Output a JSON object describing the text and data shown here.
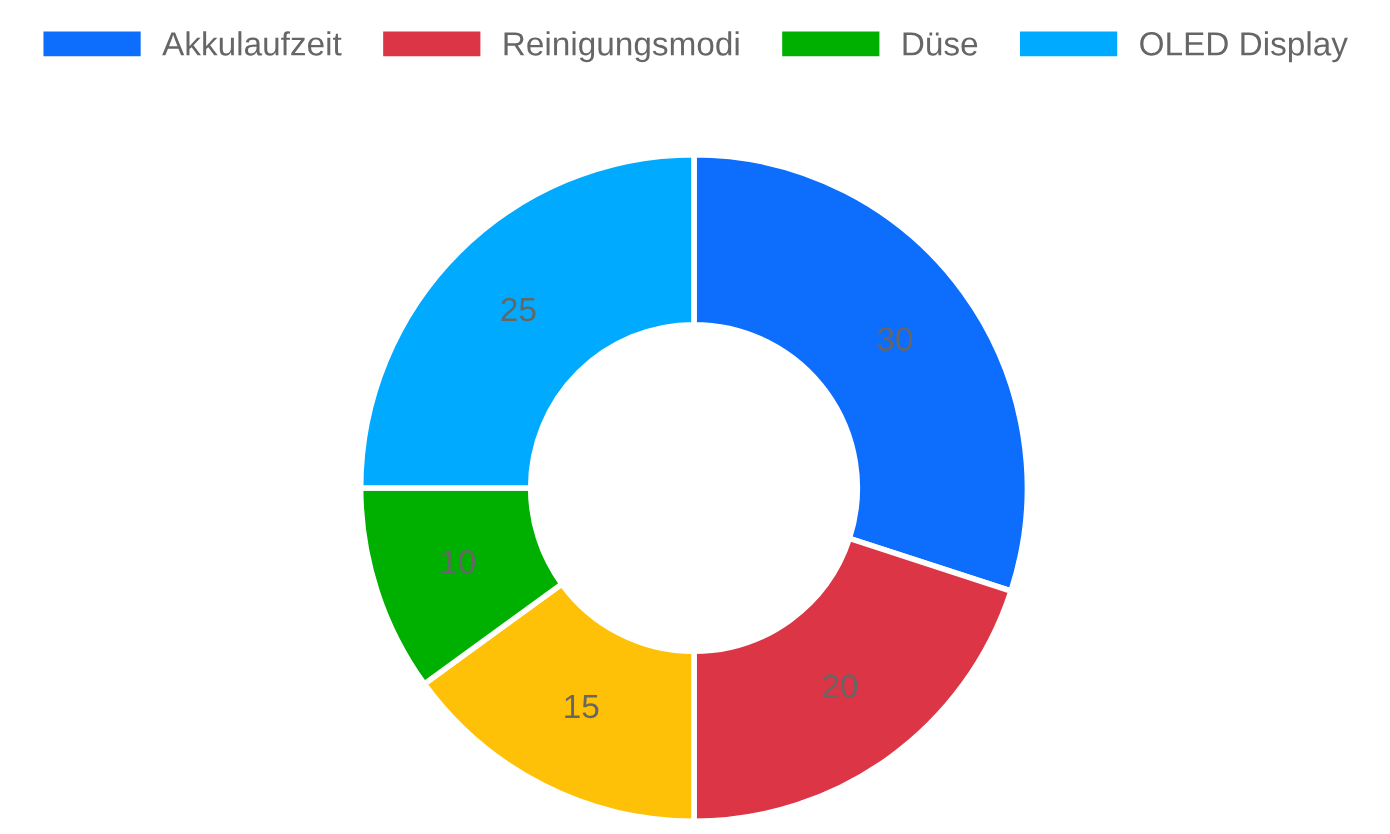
{
  "chart_data": {
    "type": "donut",
    "categories": [
      "Akkulaufzeit",
      "Reinigungsmodi",
      null,
      "Düse",
      "OLED Display"
    ],
    "values": [
      30,
      20,
      15,
      10,
      25
    ],
    "colors": [
      "#0d6efd",
      "#dc3545",
      "#ffc107",
      "#00b000",
      "#00aaff"
    ],
    "data_labels": true,
    "legend": "top"
  }
}
